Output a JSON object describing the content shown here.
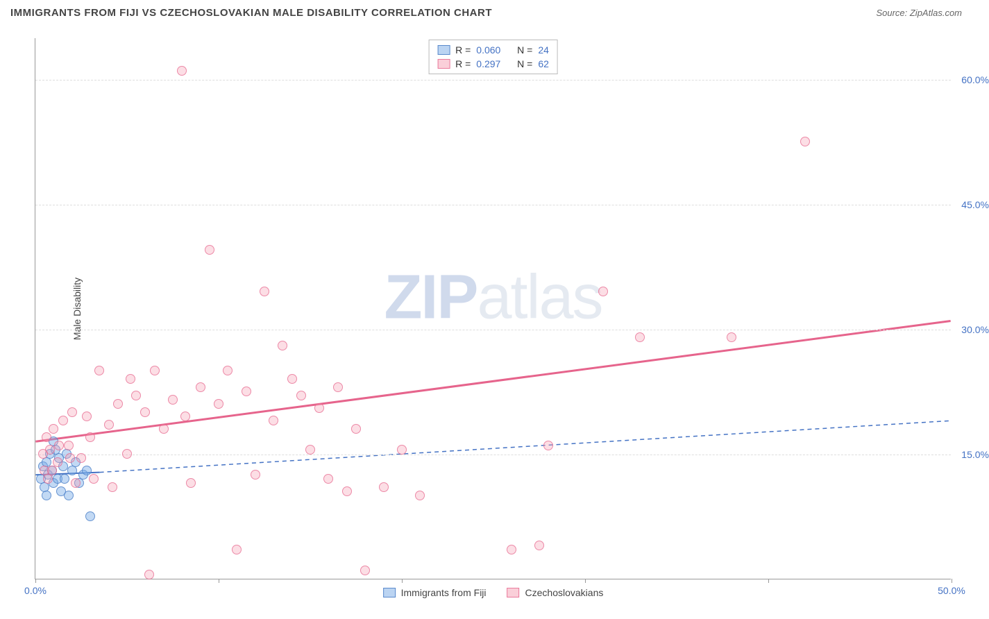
{
  "header": {
    "title": "IMMIGRANTS FROM FIJI VS CZECHOSLOVAKIAN MALE DISABILITY CORRELATION CHART",
    "source": "Source: ZipAtlas.com"
  },
  "chart": {
    "type": "scatter",
    "ylabel": "Male Disability",
    "xlim": [
      0,
      50
    ],
    "ylim": [
      0,
      65
    ],
    "ytick_values": [
      15,
      30,
      45,
      60
    ],
    "ytick_labels": [
      "15.0%",
      "30.0%",
      "45.0%",
      "60.0%"
    ],
    "xtick_values": [
      0,
      10,
      20,
      30,
      40,
      50
    ],
    "xtick_label_left": "0.0%",
    "xtick_label_right": "50.0%",
    "grid_color": "#dddddd",
    "axis_color": "#999999",
    "background_color": "#ffffff",
    "colors": {
      "blue_fill": "#78aae6",
      "blue_stroke": "#5082c8",
      "pink_fill": "#f5a0b4",
      "pink_stroke": "#e6648c"
    },
    "marker_radius": 7,
    "watermark": {
      "prefix": "ZIP",
      "suffix": "atlas"
    },
    "series": [
      {
        "name": "Immigrants from Fiji",
        "class": "blue",
        "R": "0.060",
        "N": "24",
        "trend": {
          "x1": 0,
          "y1": 12.5,
          "x2": 3.5,
          "y2": 12.8,
          "dashed_x2": 50,
          "dashed_y2": 19,
          "color": "#4472c4",
          "width": 2
        },
        "points": [
          [
            0.3,
            12.0
          ],
          [
            0.4,
            13.5
          ],
          [
            0.5,
            11.0
          ],
          [
            0.6,
            14.0
          ],
          [
            0.7,
            12.5
          ],
          [
            0.8,
            15.0
          ],
          [
            0.9,
            13.0
          ],
          [
            1.0,
            11.5
          ],
          [
            1.1,
            15.5
          ],
          [
            1.2,
            12.0
          ],
          [
            1.3,
            14.5
          ],
          [
            1.4,
            10.5
          ],
          [
            1.5,
            13.5
          ],
          [
            1.6,
            12.0
          ],
          [
            1.8,
            10.0
          ],
          [
            2.0,
            13.0
          ],
          [
            2.2,
            14.0
          ],
          [
            2.4,
            11.5
          ],
          [
            2.6,
            12.5
          ],
          [
            2.8,
            13.0
          ],
          [
            3.0,
            7.5
          ],
          [
            1.0,
            16.5
          ],
          [
            0.6,
            10.0
          ],
          [
            1.7,
            15.0
          ]
        ]
      },
      {
        "name": "Czechoslovakians",
        "class": "pink",
        "R": "0.297",
        "N": "62",
        "trend": {
          "x1": 0,
          "y1": 16.5,
          "x2": 50,
          "y2": 31,
          "color": "#e6648c",
          "width": 3
        },
        "points": [
          [
            0.5,
            13.0
          ],
          [
            0.6,
            17.0
          ],
          [
            0.8,
            15.5
          ],
          [
            1.0,
            18.0
          ],
          [
            1.2,
            14.0
          ],
          [
            1.5,
            19.0
          ],
          [
            1.8,
            16.0
          ],
          [
            2.0,
            20.0
          ],
          [
            2.5,
            14.5
          ],
          [
            2.8,
            19.5
          ],
          [
            3.0,
            17.0
          ],
          [
            3.5,
            25.0
          ],
          [
            4.0,
            18.5
          ],
          [
            4.5,
            21.0
          ],
          [
            5.0,
            15.0
          ],
          [
            5.2,
            24.0
          ],
          [
            5.5,
            22.0
          ],
          [
            6.0,
            20.0
          ],
          [
            6.5,
            25.0
          ],
          [
            7.0,
            18.0
          ],
          [
            7.5,
            21.5
          ],
          [
            8.0,
            61.0
          ],
          [
            8.5,
            11.5
          ],
          [
            9.0,
            23.0
          ],
          [
            9.5,
            39.5
          ],
          [
            10.0,
            21.0
          ],
          [
            10.5,
            25.0
          ],
          [
            11.0,
            3.5
          ],
          [
            11.5,
            22.5
          ],
          [
            12.0,
            12.5
          ],
          [
            12.5,
            34.5
          ],
          [
            13.0,
            19.0
          ],
          [
            13.5,
            28.0
          ],
          [
            14.0,
            24.0
          ],
          [
            14.5,
            22.0
          ],
          [
            15.0,
            15.5
          ],
          [
            15.5,
            20.5
          ],
          [
            16.0,
            12.0
          ],
          [
            16.5,
            23.0
          ],
          [
            17.0,
            10.5
          ],
          [
            17.5,
            18.0
          ],
          [
            18.0,
            1.0
          ],
          [
            19.0,
            11.0
          ],
          [
            20.0,
            15.5
          ],
          [
            21.0,
            10.0
          ],
          [
            26.0,
            3.5
          ],
          [
            27.5,
            4.0
          ],
          [
            28.0,
            16.0
          ],
          [
            31.0,
            34.5
          ],
          [
            33.0,
            29.0
          ],
          [
            38.0,
            29.0
          ],
          [
            42.0,
            52.5
          ],
          [
            0.4,
            15.0
          ],
          [
            0.7,
            12.0
          ],
          [
            1.3,
            16.0
          ],
          [
            4.2,
            11.0
          ],
          [
            6.2,
            0.5
          ],
          [
            8.2,
            19.5
          ],
          [
            3.2,
            12.0
          ],
          [
            2.2,
            11.5
          ],
          [
            1.9,
            14.5
          ],
          [
            0.9,
            13.0
          ]
        ]
      }
    ]
  },
  "legend_top": {
    "r_label": "R =",
    "n_label": "N ="
  }
}
